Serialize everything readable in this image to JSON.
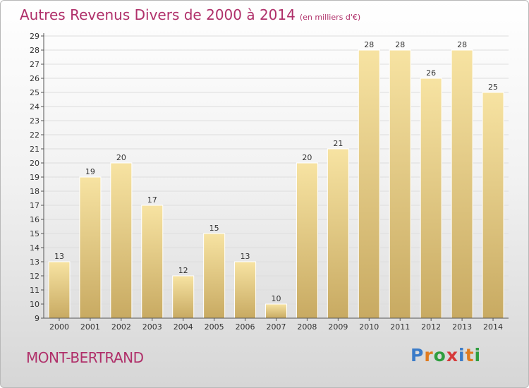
{
  "header": {
    "title": "Autres Revenus Divers de 2000 à 2014",
    "unit": "(en milliers d'€)"
  },
  "footer": {
    "commune": "MONT-BERTRAND",
    "logo": [
      "P",
      "r",
      "o",
      "x",
      "i",
      "t",
      "i"
    ],
    "logo_colors": [
      "#3a7bc8",
      "#e07b1f",
      "#2f9e3f",
      "#d63a3a",
      "#3a7bc8",
      "#e07b1f",
      "#2f9e3f"
    ]
  },
  "colors": {
    "bar_light": "#f7e3a2",
    "bar_dark": "#c8aa62",
    "axis": "#555555",
    "grid": "#dddddd",
    "label": "#333333"
  },
  "chart_data": {
    "type": "bar",
    "title": "Autres Revenus Divers de 2000 à 2014",
    "xlabel": "",
    "ylabel": "",
    "ylim": [
      9,
      29
    ],
    "yticks": [
      9,
      10,
      11,
      12,
      13,
      14,
      15,
      16,
      17,
      18,
      19,
      20,
      21,
      22,
      23,
      24,
      25,
      26,
      27,
      28,
      29
    ],
    "categories": [
      "2000",
      "2001",
      "2002",
      "2003",
      "2004",
      "2005",
      "2006",
      "2007",
      "2008",
      "2009",
      "2010",
      "2011",
      "2012",
      "2013",
      "2014"
    ],
    "values": [
      13,
      19,
      20,
      17,
      12,
      15,
      13,
      10,
      20,
      21,
      28,
      28,
      26,
      28,
      25
    ],
    "grid": true,
    "legend": "none"
  }
}
